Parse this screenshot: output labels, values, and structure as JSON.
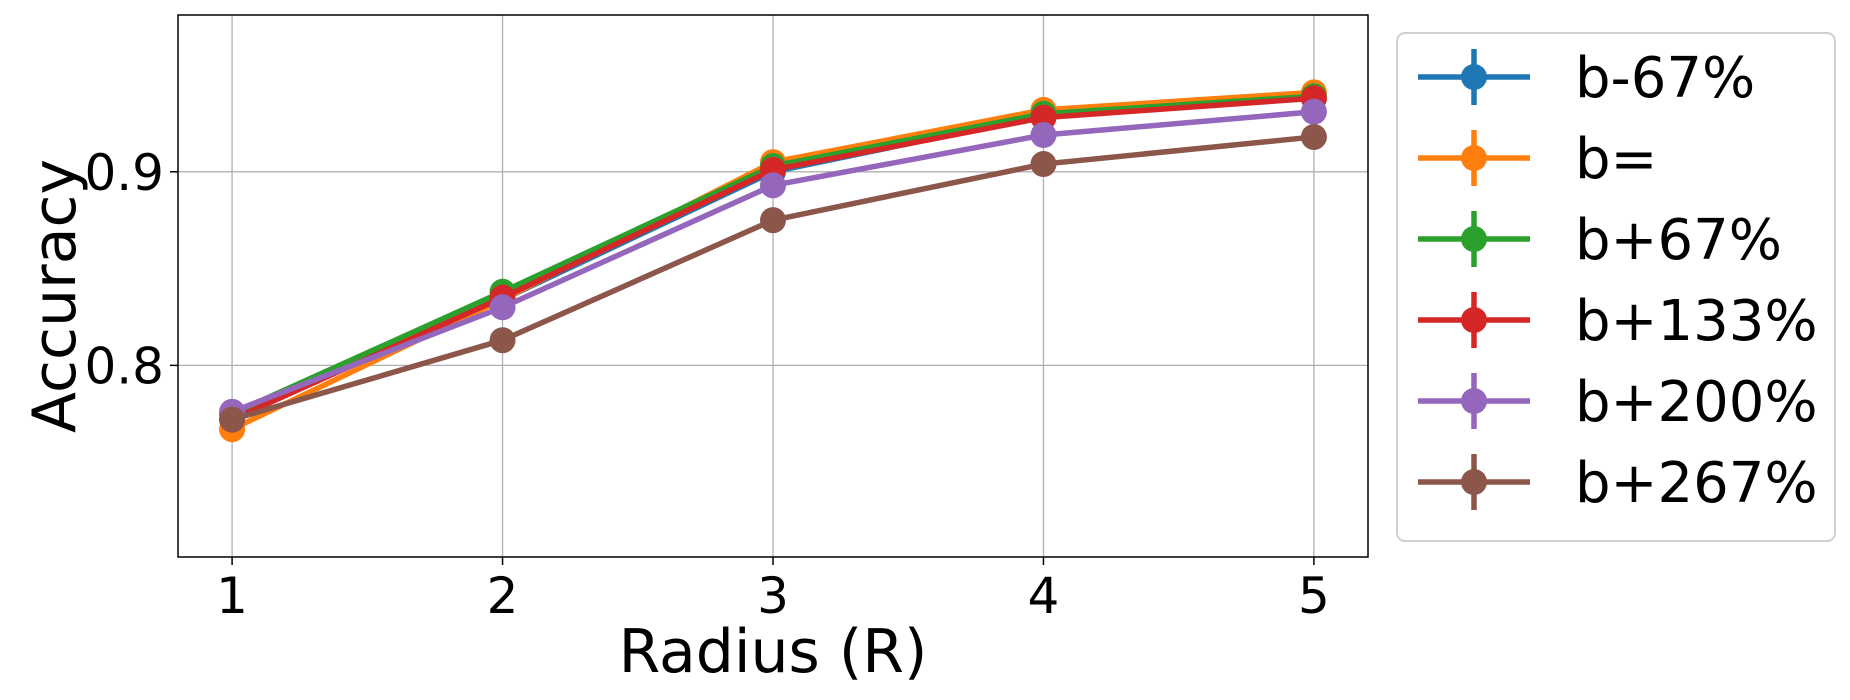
{
  "chart_data": {
    "type": "line",
    "title": "",
    "xlabel": "Radius (R)",
    "ylabel": "Accuracy",
    "x": [
      1,
      2,
      3,
      4,
      5
    ],
    "xlim": [
      0.8,
      5.2
    ],
    "ylim": [
      0.701,
      0.981
    ],
    "xticks": [
      1,
      2,
      3,
      4,
      5
    ],
    "yticks": [
      0.8,
      0.9
    ],
    "xtick_labels": [
      "1",
      "2",
      "3",
      "4",
      "5"
    ],
    "ytick_labels": [
      "0.8",
      "0.9"
    ],
    "grid": true,
    "legend_position": "outside-right",
    "error_bars": true,
    "series": [
      {
        "name": "b-67%",
        "color": "#1f77b4",
        "values": [
          0.775,
          0.834,
          0.9,
          0.929,
          0.938
        ]
      },
      {
        "name": "b=",
        "color": "#ff7f0e",
        "values": [
          0.767,
          0.834,
          0.905,
          0.932,
          0.941
        ]
      },
      {
        "name": "b+67%",
        "color": "#2ca02c",
        "values": [
          0.775,
          0.838,
          0.903,
          0.93,
          0.939
        ]
      },
      {
        "name": "b+133%",
        "color": "#d62728",
        "values": [
          0.772,
          0.835,
          0.901,
          0.928,
          0.938
        ]
      },
      {
        "name": "b+200%",
        "color": "#9467bd",
        "values": [
          0.776,
          0.83,
          0.893,
          0.919,
          0.931
        ]
      },
      {
        "name": "b+267%",
        "color": "#8c564b",
        "values": [
          0.772,
          0.813,
          0.875,
          0.904,
          0.918
        ]
      }
    ]
  }
}
